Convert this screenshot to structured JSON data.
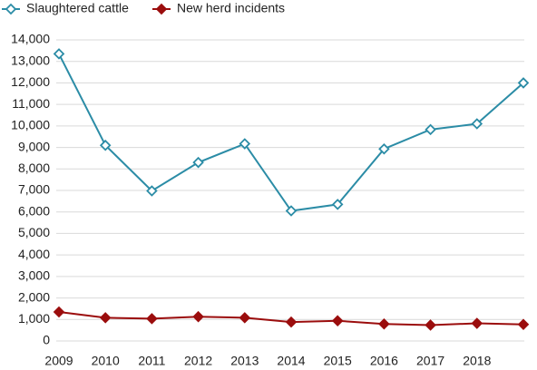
{
  "chart_data": {
    "type": "line",
    "categories": [
      "2009",
      "2010",
      "2011",
      "2012",
      "2013",
      "2014",
      "2015",
      "2016",
      "2017",
      "2018",
      null
    ],
    "series": [
      {
        "name": "Slaughtered cattle",
        "color": "#2b8ca6",
        "marker": "open-diamond",
        "values": [
          13350,
          9100,
          6980,
          8300,
          9170,
          6050,
          6350,
          8930,
          9830,
          10100,
          12000
        ]
      },
      {
        "name": "New herd incidents",
        "color": "#9b0d0d",
        "marker": "filled-diamond",
        "values": [
          1350,
          1080,
          1040,
          1130,
          1080,
          880,
          940,
          790,
          740,
          820,
          770
        ]
      }
    ],
    "ylim": [
      0,
      14000
    ],
    "yticks": [
      0,
      {
        "value": 1000,
        "label": "1,000"
      },
      {
        "value": 2000,
        "label": "2,000"
      },
      {
        "value": 3000,
        "label": "3,000"
      },
      {
        "value": 4000,
        "label": "4,000"
      },
      {
        "value": 5000,
        "label": "5,000"
      },
      {
        "value": 6000,
        "label": "6,000"
      },
      {
        "value": 7000,
        "label": "7,000"
      },
      {
        "value": 8000,
        "label": "8,000"
      },
      {
        "value": 9000,
        "label": "9,000"
      },
      {
        "value": 10000,
        "label": "10,000"
      },
      {
        "value": 11000,
        "label": "11,000"
      },
      {
        "value": 12000,
        "label": "12,000"
      },
      {
        "value": 13000,
        "label": "13,000"
      },
      {
        "value": 14000,
        "label": "14,000"
      }
    ],
    "grid": true,
    "legend": "top"
  }
}
